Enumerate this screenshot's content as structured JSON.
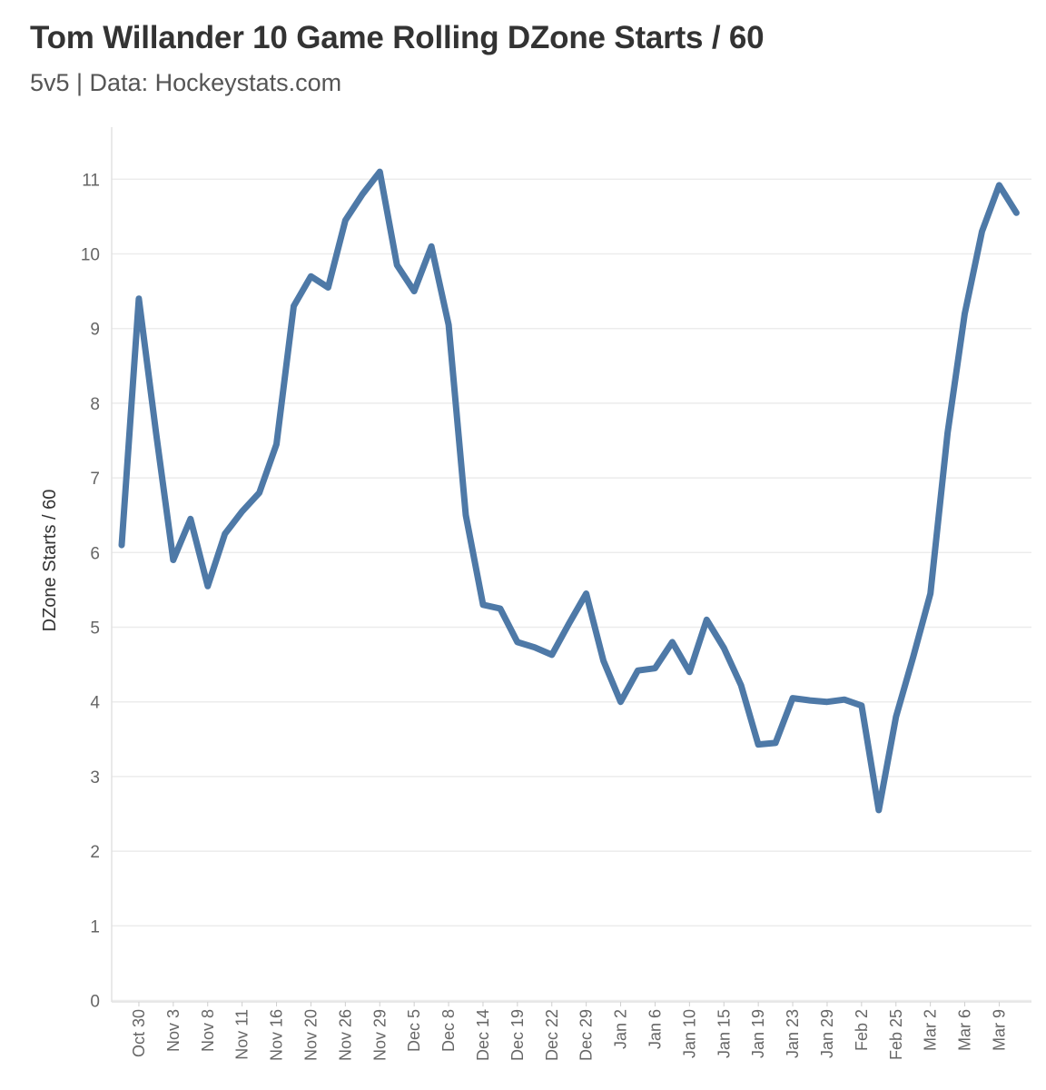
{
  "chart_data": {
    "type": "line",
    "title": "Tom Willander 10 Game Rolling DZone Starts / 60",
    "subtitle": "5v5 | Data: Hockeystats.com",
    "xlabel": "",
    "ylabel": "DZone Starts / 60",
    "ylim": [
      0,
      11.6
    ],
    "yticks": [
      0,
      1,
      2,
      3,
      4,
      5,
      6,
      7,
      8,
      9,
      10,
      11
    ],
    "grid": true,
    "line_color": "#4e79a7",
    "xtick_labels": [
      "Oct 30",
      "Nov 3",
      "Nov 8",
      "Nov 11",
      "Nov 16",
      "Nov 20",
      "Nov 26",
      "Nov 29",
      "Dec 5",
      "Dec 8",
      "Dec 14",
      "Dec 19",
      "Dec 22",
      "Dec 29",
      "Jan 2",
      "Jan 6",
      "Jan 10",
      "Jan 15",
      "Jan 19",
      "Jan 23",
      "Jan 29",
      "Feb 2",
      "Feb 25",
      "Mar 2",
      "Mar 6",
      "Mar 9"
    ],
    "xtick_index": [
      1,
      3,
      5,
      7,
      9,
      11,
      13,
      15,
      17,
      19,
      21,
      23,
      25,
      27,
      29,
      31,
      33,
      35,
      37,
      39,
      41,
      43,
      45,
      47,
      49,
      51
    ],
    "series": [
      {
        "name": "10 Game Rolling DZone Starts / 60",
        "values": [
          6.1,
          9.4,
          7.6,
          5.9,
          6.45,
          5.55,
          6.25,
          6.55,
          6.8,
          7.45,
          9.3,
          9.7,
          9.55,
          10.45,
          10.8,
          11.1,
          9.85,
          9.5,
          10.1,
          9.05,
          6.5,
          5.3,
          5.25,
          4.8,
          4.73,
          4.63,
          5.05,
          5.45,
          4.55,
          4.0,
          4.42,
          4.45,
          4.8,
          4.4,
          5.1,
          4.72,
          4.22,
          3.43,
          3.45,
          4.05,
          4.02,
          4.0,
          4.03,
          3.95,
          2.55,
          3.8,
          4.6,
          5.45,
          7.6,
          9.2,
          10.3,
          10.92,
          10.55
        ]
      }
    ]
  }
}
